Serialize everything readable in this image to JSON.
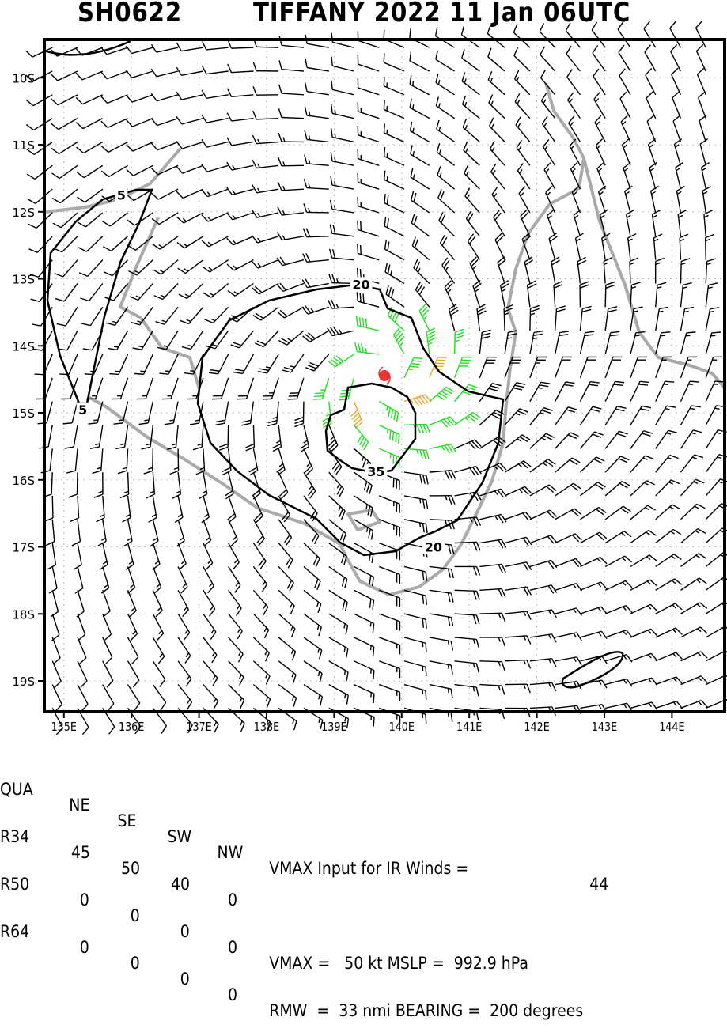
{
  "chart_data": {
    "type": "wind_barb_map",
    "title": {
      "storm_id": "SH0622",
      "storm_label": "TIFFANY 2022 11 Jan 06UTC"
    },
    "lon_range": [
      134.71,
      144.78
    ],
    "lat_range": [
      -19.46,
      -9.43
    ],
    "lon_ticks": [
      {
        "value": 135,
        "label": "135E"
      },
      {
        "value": 136,
        "label": "136E"
      },
      {
        "value": 137,
        "label": "137E"
      },
      {
        "value": 138,
        "label": "138E"
      },
      {
        "value": 139,
        "label": "139E"
      },
      {
        "value": 140,
        "label": "140E"
      },
      {
        "value": 141,
        "label": "141E"
      },
      {
        "value": 142,
        "label": "142E"
      },
      {
        "value": 143,
        "label": "143E"
      },
      {
        "value": 144,
        "label": "144E"
      }
    ],
    "lat_ticks": [
      {
        "value": -10,
        "label": "10S"
      },
      {
        "value": -11,
        "label": "11S"
      },
      {
        "value": -12,
        "label": "12S"
      },
      {
        "value": -13,
        "label": "13S"
      },
      {
        "value": -14,
        "label": "14S"
      },
      {
        "value": -15,
        "label": "15S"
      },
      {
        "value": -16,
        "label": "16S"
      },
      {
        "value": -17,
        "label": "17S"
      },
      {
        "value": -18,
        "label": "18S"
      },
      {
        "value": -19,
        "label": "19S"
      }
    ],
    "grid": true,
    "storm_center": {
      "lon": 139.74,
      "lat": -14.45
    },
    "wind_field": {
      "vmax_kt": 50,
      "rmw_nmi": 33,
      "hemisphere": "south"
    },
    "wind_color_thresholds": [
      {
        "min_kt": 0,
        "color": "#000000"
      },
      {
        "min_kt": 34,
        "color": "#22dd22"
      },
      {
        "min_kt": 48,
        "color": "#e8a830"
      }
    ],
    "contour_labels": [
      {
        "label": "5",
        "lon": 135.85,
        "lat": -11.75
      },
      {
        "label": "5",
        "lon": 135.28,
        "lat": -14.95
      },
      {
        "label": "20",
        "lon": 139.4,
        "lat": -13.08
      },
      {
        "label": "20",
        "lon": 140.47,
        "lat": -17.0
      },
      {
        "label": "35",
        "lon": 139.62,
        "lat": -15.87
      }
    ]
  },
  "info": {
    "headers": [
      "QUA",
      "NE",
      "SE",
      "SW",
      "NW"
    ],
    "rows": [
      {
        "label": "R34",
        "values": [
          "45",
          "50",
          "40",
          "0"
        ]
      },
      {
        "label": "R50",
        "values": [
          "0",
          "0",
          "0",
          "0"
        ]
      },
      {
        "label": "R64",
        "values": [
          "0",
          "0",
          "0",
          "0"
        ]
      }
    ],
    "vmax_ir_label": "VMAX Input for IR Winds =",
    "vmax_ir_value": "44",
    "vmax_line": "VMAX =   50 kt MSLP =  992.9 hPa",
    "rmw_line": "RMW  =  33 nmi BEARING =  200 degrees"
  }
}
